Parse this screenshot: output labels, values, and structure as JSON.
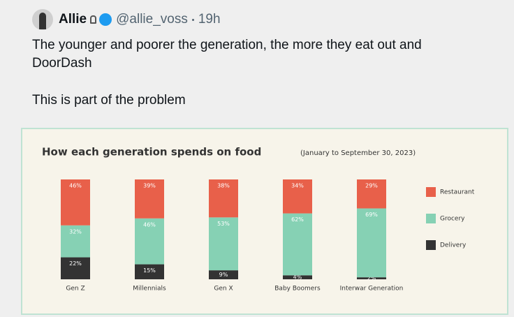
{
  "tweet": {
    "name": "Allie",
    "handle": "@allie_voss",
    "time": "19h",
    "text": [
      "The younger and poorer the generation, the more they eat out and DoorDash",
      "This is part of the problem"
    ]
  },
  "chart_data": {
    "type": "bar",
    "stacked": true,
    "title": "How each generation spends on food",
    "subtitle": "(January to September 30, 2023)",
    "categories": [
      "Gen Z",
      "Millennials",
      "Gen X",
      "Baby Boomers",
      "Interwar Generation"
    ],
    "series": [
      {
        "name": "Restaurant",
        "color": "#e8604a",
        "values": [
          46,
          39,
          38,
          34,
          29
        ],
        "value_labels": [
          "46%",
          "39%",
          "38%",
          "34%",
          "29%"
        ]
      },
      {
        "name": "Grocery",
        "color": "#86d1b4",
        "values": [
          32,
          46,
          53,
          62,
          69
        ],
        "value_labels": [
          "32%",
          "46%",
          "53%",
          "62%",
          "69%"
        ]
      },
      {
        "name": "Delivery",
        "color": "#333333",
        "values": [
          22,
          15,
          9,
          4,
          2
        ],
        "value_labels": [
          "22%",
          "15%",
          "9%",
          "4%",
          "2%"
        ]
      }
    ],
    "legend": "right"
  }
}
